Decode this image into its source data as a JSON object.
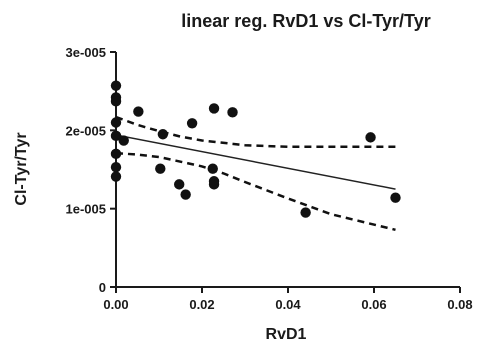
{
  "chart_data": {
    "type": "scatter",
    "title": "linear reg. RvD1 vs Cl-Tyr/Tyr",
    "xlabel": "RvD1",
    "ylabel": "Cl-Tyr/Tyr",
    "xlim": [
      0,
      0.08
    ],
    "ylim": [
      0,
      3e-05
    ],
    "x_ticks": [
      0,
      0.02,
      0.04,
      0.06,
      0.08
    ],
    "x_tick_labels": [
      "0.00",
      "0.02",
      "0.04",
      "0.06",
      "0.08"
    ],
    "y_ticks": [
      0,
      1e-05,
      2e-05,
      3e-05
    ],
    "y_tick_labels": [
      "0",
      "1e-005",
      "2e-005",
      "3e-005"
    ],
    "points": [
      {
        "x": 0.0,
        "y": 2.57e-05
      },
      {
        "x": 0.0,
        "y": 2.42e-05
      },
      {
        "x": 0.0,
        "y": 2.37e-05
      },
      {
        "x": 0.0,
        "y": 2.1e-05
      },
      {
        "x": 0.0,
        "y": 1.93e-05
      },
      {
        "x": 0.0,
        "y": 1.7e-05
      },
      {
        "x": 0.0,
        "y": 1.53e-05
      },
      {
        "x": 0.0,
        "y": 1.41e-05
      },
      {
        "x": 0.0018,
        "y": 1.87e-05
      },
      {
        "x": 0.0052,
        "y": 2.24e-05
      },
      {
        "x": 0.0103,
        "y": 1.51e-05
      },
      {
        "x": 0.0109,
        "y": 1.95e-05
      },
      {
        "x": 0.0147,
        "y": 1.31e-05
      },
      {
        "x": 0.0162,
        "y": 1.18e-05
      },
      {
        "x": 0.0177,
        "y": 2.09e-05
      },
      {
        "x": 0.0225,
        "y": 1.51e-05
      },
      {
        "x": 0.0228,
        "y": 2.28e-05
      },
      {
        "x": 0.0228,
        "y": 1.35e-05
      },
      {
        "x": 0.0228,
        "y": 1.31e-05
      },
      {
        "x": 0.0271,
        "y": 2.23e-05
      },
      {
        "x": 0.0441,
        "y": 9.5e-06
      },
      {
        "x": 0.0592,
        "y": 1.91e-05
      },
      {
        "x": 0.065,
        "y": 1.14e-05
      }
    ],
    "regression_line": {
      "x": [
        0,
        0.065
      ],
      "y": [
        1.94e-05,
        1.25e-05
      ]
    },
    "ci_upper": {
      "x": [
        0,
        0.005,
        0.01,
        0.015,
        0.02,
        0.03,
        0.04,
        0.05,
        0.065
      ],
      "y": [
        2.17e-05,
        2.07e-05,
        1.99e-05,
        1.92e-05,
        1.87e-05,
        1.81e-05,
        1.79e-05,
        1.79e-05,
        1.79e-05
      ]
    },
    "ci_lower": {
      "x": [
        0,
        0.005,
        0.01,
        0.015,
        0.02,
        0.025,
        0.03,
        0.04,
        0.05,
        0.065
      ],
      "y": [
        1.71e-05,
        1.69e-05,
        1.66e-05,
        1.6e-05,
        1.54e-05,
        1.45e-05,
        1.34e-05,
        1.13e-05,
        9.3e-06,
        7.3e-06
      ]
    },
    "grid": false,
    "legend": "none"
  }
}
